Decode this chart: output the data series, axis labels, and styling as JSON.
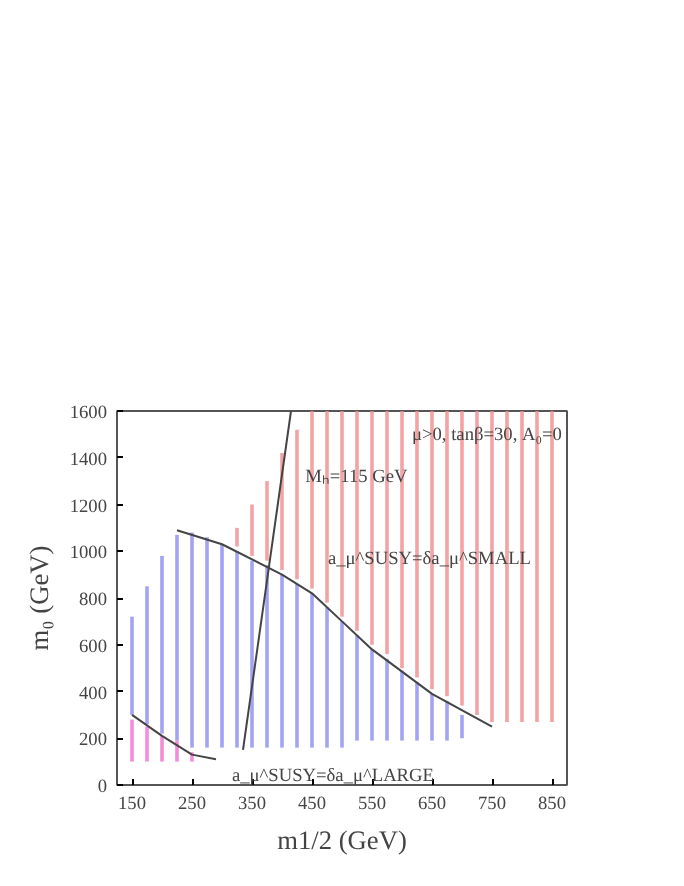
{
  "chart_data": {
    "type": "bar",
    "xlabel": "m1/2 (GeV)",
    "ylabel": "m₀ (GeV)",
    "xlim": [
      125,
      875
    ],
    "ylim": [
      0,
      1600
    ],
    "xticks": [
      150,
      250,
      350,
      450,
      550,
      650,
      750,
      850
    ],
    "yticks": [
      0,
      200,
      400,
      600,
      800,
      1000,
      1200,
      1400,
      1600
    ],
    "grid": false,
    "series": [
      {
        "color": "#8c8cf0",
        "x": [
          150,
          175,
          200,
          225,
          250,
          275,
          300,
          325,
          350,
          375,
          400,
          425,
          450,
          475,
          500,
          525,
          550,
          575,
          600,
          625,
          650,
          675,
          700
        ],
        "base": [
          300,
          260,
          220,
          190,
          160,
          160,
          160,
          160,
          160,
          160,
          160,
          160,
          160,
          160,
          160,
          190,
          190,
          190,
          190,
          190,
          190,
          190,
          200
        ],
        "values": [
          420,
          590,
          760,
          880,
          920,
          900,
          870,
          840,
          800,
          780,
          740,
          700,
          660,
          600,
          540,
          450,
          390,
          350,
          300,
          250,
          200,
          170,
          100
        ]
      },
      {
        "color": "#f08c8c",
        "x": [
          325,
          350,
          375,
          400,
          425,
          450,
          475,
          500,
          525,
          550,
          575,
          600,
          625,
          650,
          675,
          700,
          725,
          750,
          775,
          800,
          825,
          850
        ],
        "base": [
          1020,
          980,
          960,
          920,
          880,
          840,
          780,
          720,
          660,
          600,
          560,
          500,
          460,
          410,
          380,
          340,
          300,
          270,
          270,
          270,
          270,
          270
        ],
        "values": [
          80,
          220,
          340,
          500,
          640,
          760,
          820,
          880,
          940,
          1000,
          1040,
          1100,
          1140,
          1190,
          1220,
          1260,
          1300,
          1330,
          1330,
          1330,
          1330,
          1330
        ]
      },
      {
        "color": "#f070d0",
        "x": [
          150,
          175,
          200,
          225,
          250
        ],
        "base": [
          100,
          100,
          100,
          100,
          100
        ],
        "values": [
          180,
          150,
          110,
          90,
          40
        ]
      },
      {
        "type": "line",
        "color": "#444444",
        "x": [
          225,
          300,
          400,
          450,
          500,
          550,
          650,
          750
        ],
        "values": [
          1090,
          1030,
          900,
          820,
          700,
          580,
          390,
          250
        ]
      },
      {
        "type": "line",
        "color": "#444444",
        "x": [
          335,
          415
        ],
        "values": [
          150,
          1600
        ]
      },
      {
        "type": "line",
        "color": "#444444",
        "x": [
          150,
          200,
          250,
          290
        ],
        "values": [
          300,
          210,
          130,
          110
        ]
      }
    ],
    "annotations": [
      {
        "text": "Mₕ=115 GeV",
        "x": 412,
        "y": 1270
      },
      {
        "text": "a_μ^SUSY=δa_μ^SMALL",
        "x": 450,
        "y": 920
      },
      {
        "text": "a_μ^SUSY=δa_μ^LARGE",
        "x": 290,
        "y": 110
      },
      {
        "text": "μ>0, tanβ=30, A₀=0",
        "x": 590,
        "y": 1450
      }
    ]
  }
}
